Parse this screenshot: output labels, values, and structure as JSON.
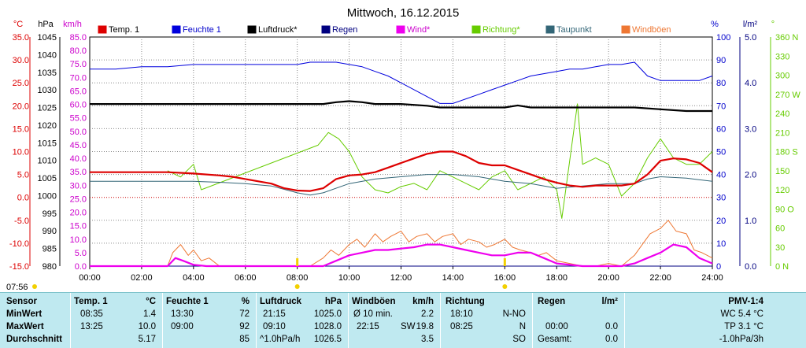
{
  "chart_data": {
    "type": "line",
    "title": "Mittwoch, 16.12.2015",
    "x_ticks": [
      "00:00",
      "02:00",
      "04:00",
      "06:00",
      "08:00",
      "10:00",
      "12:00",
      "14:00",
      "16:00",
      "18:00",
      "20:00",
      "22:00",
      "24:00"
    ],
    "xlim": [
      0,
      24
    ],
    "current_time_label": "07:56",
    "axes": {
      "temp": {
        "unit": "°C",
        "ticks": [
          "35.0",
          "30.0",
          "25.0",
          "20.0",
          "15.0",
          "10.0",
          "5.0",
          "0.0",
          "-5.0",
          "-10.0",
          "-15.0"
        ],
        "ylim": [
          -15,
          35
        ]
      },
      "pressure": {
        "unit": "hPa",
        "ticks": [
          "1045",
          "1040",
          "1035",
          "1030",
          "1025",
          "1020",
          "1015",
          "1010",
          "1005",
          "1000",
          "995",
          "990",
          "985",
          "980"
        ],
        "ylim": [
          980,
          1045
        ]
      },
      "wind": {
        "unit": "km/h",
        "ticks": [
          "85.0",
          "80.0",
          "75.0",
          "70.0",
          "65.0",
          "60.0",
          "55.0",
          "50.0",
          "45.0",
          "40.0",
          "35.0",
          "30.0",
          "25.0",
          "20.0",
          "15.0",
          "10.0",
          "5.0",
          "0.0"
        ],
        "ylim": [
          0,
          85
        ]
      },
      "humidity": {
        "unit": "%",
        "ticks": [
          "100",
          "90",
          "80",
          "70",
          "60",
          "50",
          "40",
          "30",
          "20",
          "10",
          "0"
        ],
        "ylim": [
          0,
          100
        ]
      },
      "rain": {
        "unit": "l/m²",
        "ticks": [
          "5.0",
          "4.0",
          "3.0",
          "2.0",
          "1.0",
          "0.0"
        ],
        "ylim": [
          0,
          5
        ]
      },
      "direction": {
        "unit": "°",
        "ticks": [
          "360 N",
          "330",
          "300",
          "270 W",
          "240",
          "210",
          "180 S",
          "150",
          "120",
          "90 O",
          "60",
          "30",
          "0 N"
        ],
        "ylim": [
          0,
          360
        ]
      }
    },
    "series": [
      {
        "name": "Temp. 1",
        "color": "#dd0000",
        "axis": "temp",
        "x": [
          0,
          1,
          2,
          3,
          4,
          5,
          5.5,
          6,
          6.5,
          7,
          7.5,
          8,
          8.5,
          9,
          9.5,
          10,
          10.5,
          11,
          11.5,
          12,
          12.5,
          13,
          13.5,
          14,
          14.5,
          15,
          15.5,
          16,
          16.5,
          17,
          17.5,
          18,
          18.5,
          19,
          19.5,
          20,
          20.5,
          21,
          21.5,
          22,
          22.5,
          23,
          23.5,
          24
        ],
        "y": [
          5.5,
          5.5,
          5.5,
          5.5,
          5.2,
          4.8,
          4.5,
          4.0,
          3.5,
          3.0,
          2.0,
          1.5,
          1.4,
          2.0,
          4.0,
          4.8,
          5.0,
          5.5,
          6.5,
          7.5,
          8.5,
          9.5,
          10.0,
          10.0,
          9.0,
          7.5,
          7.0,
          7.0,
          6.0,
          5.0,
          4.0,
          3.2,
          2.6,
          2.3,
          2.6,
          2.6,
          2.6,
          3.0,
          5.0,
          8.0,
          8.5,
          8.3,
          7.5,
          5.5
        ]
      },
      {
        "name": "Feuchte 1",
        "color": "#0000dd",
        "axis": "humidity",
        "x": [
          0,
          1,
          2,
          3,
          4,
          5,
          6,
          7,
          8,
          8.5,
          9,
          9.5,
          10,
          10.5,
          11,
          11.5,
          12,
          12.5,
          13,
          13.5,
          14,
          14.5,
          15,
          15.5,
          16,
          16.5,
          17,
          17.5,
          18,
          18.5,
          19,
          19.5,
          20,
          20.5,
          21,
          21.5,
          22,
          22.5,
          23,
          23.5,
          24
        ],
        "y": [
          86,
          86,
          87,
          87,
          88,
          88,
          88,
          88,
          88,
          89,
          89,
          89,
          88,
          87,
          85,
          83,
          80,
          77,
          74,
          71,
          71,
          73,
          75,
          77,
          79,
          81,
          83,
          84,
          85,
          86,
          86,
          87,
          88,
          88,
          89,
          83,
          81,
          81,
          81,
          81,
          83
        ]
      },
      {
        "name": "Luftdruck*",
        "color": "#000000",
        "axis": "pressure",
        "x": [
          0,
          2,
          4,
          6,
          8,
          9,
          9.5,
          10,
          10.5,
          11,
          12,
          13,
          13.5,
          14,
          15,
          16,
          16.5,
          17,
          18,
          19,
          20,
          21,
          22,
          23,
          24
        ],
        "y": [
          1026.0,
          1026.0,
          1026.0,
          1026.0,
          1026.0,
          1026.0,
          1026.5,
          1026.8,
          1026.5,
          1026.0,
          1026.0,
          1025.5,
          1025.0,
          1025.0,
          1025.0,
          1025.0,
          1025.6,
          1025.0,
          1025.0,
          1025.0,
          1025.0,
          1025.0,
          1024.5,
          1024.0,
          1024.0
        ]
      },
      {
        "name": "Regen",
        "color": "#000080",
        "axis": "rain",
        "x": [
          0,
          24
        ],
        "y": [
          0,
          0
        ]
      },
      {
        "name": "Wind*",
        "color": "#ee00ee",
        "axis": "wind",
        "x": [
          0,
          2,
          3,
          3.3,
          3.6,
          4,
          4.5,
          5,
          6,
          7,
          8,
          9,
          9.5,
          10,
          10.5,
          11,
          11.5,
          12,
          12.5,
          13,
          13.5,
          14,
          14.5,
          15,
          15.5,
          16,
          16.5,
          17,
          17.5,
          18,
          19,
          20,
          20.5,
          21,
          21.5,
          22,
          22.5,
          23,
          23.5,
          24
        ],
        "y": [
          0,
          0,
          0,
          3,
          2,
          0.5,
          0,
          0,
          0,
          0,
          0,
          0,
          2,
          4,
          5,
          6,
          6,
          6.5,
          7,
          8,
          8,
          7,
          6,
          5,
          4,
          4,
          5,
          5,
          3,
          1,
          0,
          0,
          0,
          1,
          3,
          5,
          8,
          7,
          3,
          1
        ]
      },
      {
        "name": "Richtung*",
        "color": "#66cc00",
        "axis": "direction",
        "x": [
          3,
          3.5,
          4,
          4.3,
          8.8,
          9.2,
          9.6,
          10,
          10.5,
          11,
          11.5,
          12,
          12.5,
          13,
          13.5,
          14,
          14.5,
          15,
          15.5,
          16,
          16.5,
          17,
          17.5,
          18,
          18.2,
          18.8,
          19,
          19.5,
          20,
          20.5,
          21,
          21.5,
          22,
          22.5,
          23,
          23.5,
          24
        ],
        "y": [
          150,
          140,
          160,
          120,
          190,
          210,
          200,
          180,
          140,
          120,
          115,
          125,
          130,
          120,
          150,
          140,
          130,
          120,
          140,
          150,
          120,
          130,
          140,
          120,
          75,
          255,
          160,
          170,
          160,
          110,
          130,
          170,
          200,
          170,
          160,
          160,
          180
        ]
      },
      {
        "name": "Taupunkt",
        "color": "#336677",
        "axis": "temp",
        "x": [
          0,
          2,
          4,
          5,
          6,
          7,
          8,
          8.5,
          9,
          10,
          11,
          12,
          13,
          14,
          15,
          16,
          17,
          18,
          19,
          20,
          21,
          21.5,
          22,
          23,
          24
        ],
        "y": [
          3.5,
          3.5,
          3.5,
          3.3,
          3.0,
          2.5,
          1.0,
          0.5,
          1.0,
          3.0,
          4.0,
          4.5,
          5.0,
          5.0,
          4.5,
          3.5,
          3.0,
          2.0,
          2.5,
          3.0,
          3.0,
          4.0,
          4.5,
          4.2,
          3.5
        ]
      },
      {
        "name": "Windböen",
        "color": "#ee7733",
        "axis": "wind",
        "x": [
          0,
          3,
          3.2,
          3.5,
          3.8,
          4,
          4.3,
          4.6,
          5,
          8.5,
          9,
          9.3,
          9.6,
          10,
          10.3,
          10.6,
          11,
          11.3,
          11.6,
          12,
          12.3,
          12.6,
          13,
          13.3,
          13.6,
          14,
          14.3,
          14.6,
          15,
          15.3,
          15.6,
          16,
          16.3,
          16.6,
          17,
          17.3,
          17.6,
          18,
          18.5,
          19,
          19.5,
          20,
          20.5,
          21,
          21.3,
          21.6,
          22,
          22.3,
          22.6,
          23,
          23.3,
          23.6,
          24
        ],
        "y": [
          0,
          0,
          5,
          8,
          4,
          6,
          2,
          3,
          0,
          0,
          3,
          6,
          4,
          8,
          10,
          7,
          12,
          9,
          11,
          13,
          9,
          11,
          12,
          9,
          11,
          12,
          8,
          10,
          9,
          7,
          8,
          10,
          7,
          6,
          5,
          4,
          5,
          2,
          1,
          0,
          0,
          1,
          0,
          4,
          8,
          12,
          14,
          17,
          13,
          12,
          6,
          5,
          3
        ]
      }
    ],
    "x_marker_times": [
      "08:00",
      "16:00"
    ]
  },
  "table": {
    "row_labels": [
      "Sensor",
      "MinWert",
      "MaxWert",
      "Durchschnitt"
    ],
    "temp": {
      "title": "Temp. 1",
      "unit": "°C",
      "min_time": "08:35",
      "min_val": "1.4",
      "max_time": "13:25",
      "max_val": "10.0",
      "avg": "5.17"
    },
    "humidity": {
      "title": "Feuchte 1",
      "unit": "%",
      "min_time": "13:30",
      "min_val": "72",
      "max_time": "09:00",
      "max_val": "92",
      "avg": "85"
    },
    "pressure": {
      "title": "Luftdruck",
      "unit": "hPa",
      "min_time": "21:15",
      "min_val": "1025.0",
      "max_time": "09:10",
      "max_val": "1028.0",
      "avg_note": "^1.0hPa/h",
      "avg": "1026.5"
    },
    "gusts": {
      "title": "Windböen",
      "unit": "km/h",
      "min_time": "Ø 10 min.",
      "min_val": "2.2",
      "max_time": "22:15",
      "max_dir": "SW",
      "max_val": "19.8",
      "avg": "3.5"
    },
    "direction": {
      "title": "Richtung",
      "min_time": "18:10",
      "min_val": "N-NO",
      "max_time": "08:25",
      "max_val": "N",
      "avg": "SO"
    },
    "rain": {
      "title": "Regen",
      "unit": "l/m²",
      "max_time": "00:00",
      "max_val": "0.0",
      "avg_label": "Gesamt:",
      "avg": "0.0"
    },
    "pmv": {
      "title": "PMV-1:4",
      "line1": "WC 5.4 °C",
      "line2": "TP 3.1 °C",
      "line3": "-1.0hPa/3h"
    }
  }
}
